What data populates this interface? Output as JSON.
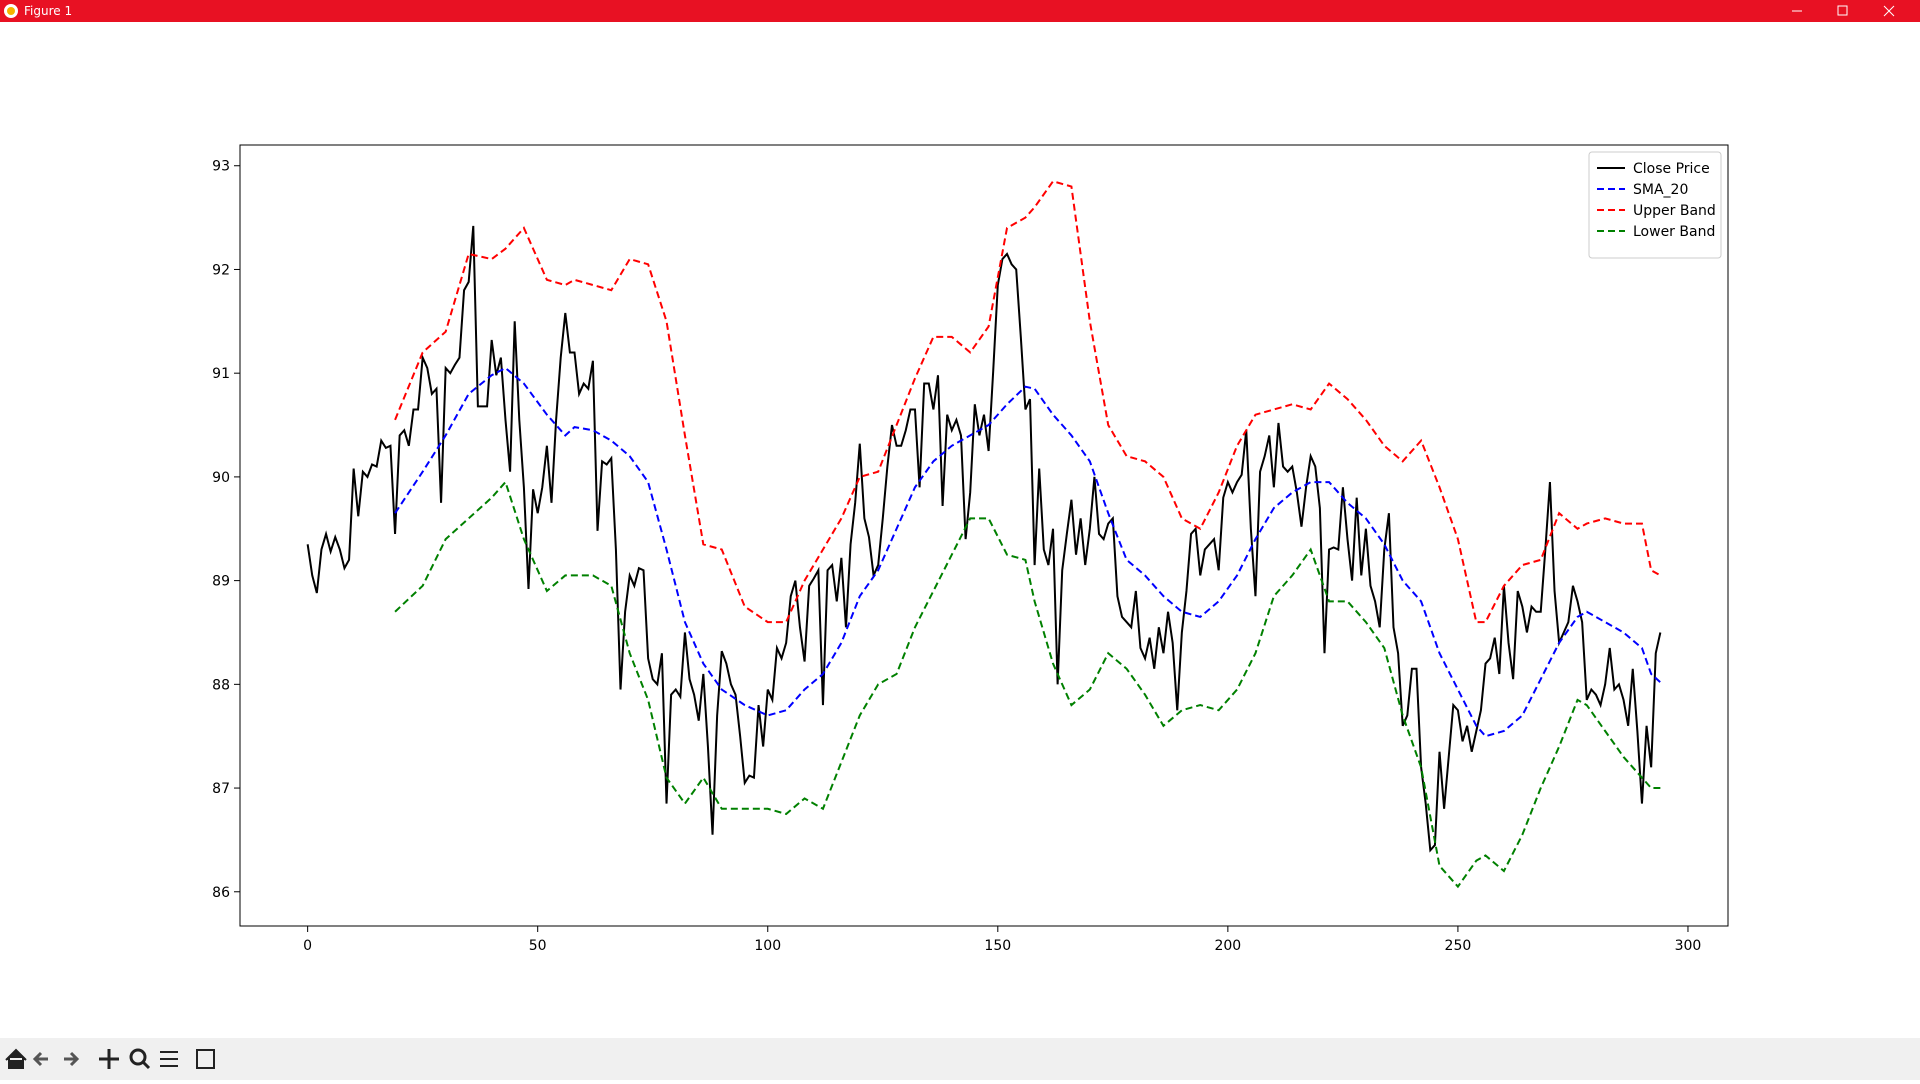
{
  "window": {
    "title": "Figure 1"
  },
  "chart_data": {
    "type": "line",
    "xlim": [
      -14.7,
      308.7
    ],
    "ylim": [
      85.67,
      93.2
    ],
    "xticks": [
      0,
      50,
      100,
      150,
      200,
      250,
      300
    ],
    "yticks": [
      86,
      87,
      88,
      89,
      90,
      91,
      92,
      93
    ],
    "legend": "upper right",
    "series": [
      {
        "name": "Close Price",
        "color": "#000000",
        "linestyle": "solid",
        "x": [
          0,
          1,
          2,
          3,
          4,
          5,
          6,
          7,
          8,
          9,
          10,
          11,
          12,
          13,
          14,
          15,
          16,
          17,
          18,
          19,
          20,
          21,
          22,
          23,
          24,
          25,
          26,
          27,
          28,
          29,
          30,
          31,
          32,
          33,
          34,
          35,
          36,
          37,
          38,
          39,
          40,
          41,
          42,
          43,
          44,
          45,
          46,
          47,
          48,
          49,
          50,
          51,
          52,
          53,
          54,
          55,
          56,
          57,
          58,
          59,
          60,
          61,
          62,
          63,
          64,
          65,
          66,
          67,
          68,
          69,
          70,
          71,
          72,
          73,
          74,
          75,
          76,
          77,
          78,
          79,
          80,
          81,
          82,
          83,
          84,
          85,
          86,
          87,
          88,
          89,
          90,
          91,
          92,
          93,
          94,
          95,
          96,
          97,
          98,
          99,
          100,
          101,
          102,
          103,
          104,
          105,
          106,
          107,
          108,
          109,
          110,
          111,
          112,
          113,
          114,
          115,
          116,
          117,
          118,
          119,
          120,
          121,
          122,
          123,
          124,
          125,
          126,
          127,
          128,
          129,
          130,
          131,
          132,
          133,
          134,
          135,
          136,
          137,
          138,
          139,
          140,
          141,
          142,
          143,
          144,
          145,
          146,
          147,
          148,
          149,
          150,
          151,
          152,
          153,
          154,
          155,
          156,
          157,
          158,
          159,
          160,
          161,
          162,
          163,
          164,
          165,
          166,
          167,
          168,
          169,
          170,
          171,
          172,
          173,
          174,
          175,
          176,
          177,
          178,
          179,
          180,
          181,
          182,
          183,
          184,
          185,
          186,
          187,
          188,
          189,
          190,
          191,
          192,
          193,
          194,
          195,
          196,
          197,
          198,
          199,
          200,
          201,
          202,
          203,
          204,
          205,
          206,
          207,
          208,
          209,
          210,
          211,
          212,
          213,
          214,
          215,
          216,
          217,
          218,
          219,
          220,
          221,
          222,
          223,
          224,
          225,
          226,
          227,
          228,
          229,
          230,
          231,
          232,
          233,
          234,
          235,
          236,
          237,
          238,
          239,
          240,
          241,
          242,
          243,
          244,
          245,
          246,
          247,
          248,
          249,
          250,
          251,
          252,
          253,
          254,
          255,
          256,
          257,
          258,
          259,
          260,
          261,
          262,
          263,
          264,
          265,
          266,
          267,
          268,
          269,
          270,
          271,
          272,
          273,
          274,
          275,
          276,
          277,
          278,
          279,
          280,
          281,
          282,
          283,
          284,
          285,
          286,
          287,
          288,
          289,
          290,
          291,
          292,
          293,
          294
        ],
        "values": [
          89.35,
          89.05,
          88.88,
          89.3,
          89.45,
          89.28,
          89.42,
          89.3,
          89.12,
          89.2,
          90.08,
          89.62,
          90.05,
          90.0,
          90.12,
          90.1,
          90.35,
          90.28,
          90.3,
          89.45,
          90.4,
          90.45,
          90.3,
          90.65,
          90.65,
          91.15,
          91.05,
          90.8,
          90.85,
          89.75,
          91.05,
          91.0,
          91.08,
          91.15,
          91.8,
          91.88,
          92.42,
          90.68,
          90.68,
          90.68,
          91.32,
          90.98,
          91.15,
          90.55,
          90.05,
          91.5,
          90.55,
          89.9,
          88.92,
          89.88,
          89.65,
          89.9,
          90.3,
          89.75,
          90.55,
          91.15,
          91.58,
          91.2,
          91.2,
          90.8,
          90.9,
          90.85,
          91.12,
          89.48,
          90.15,
          90.12,
          90.18,
          89.3,
          87.95,
          88.7,
          89.05,
          88.95,
          89.12,
          89.1,
          88.25,
          88.05,
          88.0,
          88.3,
          86.85,
          87.9,
          87.95,
          87.88,
          88.5,
          88.05,
          87.9,
          87.65,
          88.1,
          87.4,
          86.55,
          87.7,
          88.32,
          88.2,
          88.0,
          87.9,
          87.5,
          87.05,
          87.12,
          87.1,
          87.8,
          87.4,
          87.95,
          87.85,
          88.35,
          88.25,
          88.4,
          88.85,
          89.0,
          88.55,
          88.22,
          88.95,
          89.02,
          89.1,
          87.8,
          89.1,
          89.15,
          88.8,
          89.22,
          88.55,
          89.35,
          89.75,
          90.32,
          89.6,
          89.42,
          89.05,
          89.15,
          89.6,
          90.1,
          90.5,
          90.3,
          90.3,
          90.45,
          90.65,
          90.65,
          89.9,
          90.9,
          90.9,
          90.65,
          90.98,
          89.72,
          90.6,
          90.45,
          90.55,
          90.4,
          89.4,
          89.85,
          90.7,
          90.4,
          90.6,
          90.25,
          91.02,
          91.85,
          92.1,
          92.15,
          92.05,
          92.0,
          91.35,
          90.65,
          90.75,
          89.15,
          90.08,
          89.3,
          89.15,
          89.5,
          88.0,
          89.1,
          89.45,
          89.78,
          89.25,
          89.6,
          89.15,
          89.5,
          90.0,
          89.45,
          89.4,
          89.55,
          89.6,
          88.85,
          88.65,
          88.6,
          88.55,
          88.9,
          88.35,
          88.25,
          88.45,
          88.15,
          88.55,
          88.3,
          88.7,
          88.4,
          87.75,
          88.5,
          88.9,
          89.45,
          89.5,
          89.05,
          89.3,
          89.35,
          89.4,
          89.1,
          89.8,
          89.95,
          89.85,
          89.95,
          90.02,
          90.45,
          89.5,
          88.85,
          90.05,
          90.2,
          90.4,
          89.9,
          90.52,
          90.1,
          90.05,
          90.1,
          89.85,
          89.52,
          89.9,
          90.2,
          90.1,
          89.7,
          88.3,
          89.3,
          89.32,
          89.3,
          89.9,
          89.4,
          89.0,
          89.8,
          89.05,
          89.5,
          88.95,
          88.8,
          88.55,
          89.3,
          89.65,
          88.55,
          88.3,
          87.6,
          87.7,
          88.15,
          88.15,
          87.2,
          86.85,
          86.4,
          86.45,
          87.35,
          86.8,
          87.3,
          87.8,
          87.75,
          87.45,
          87.6,
          87.35,
          87.55,
          87.75,
          88.2,
          88.25,
          88.45,
          88.1,
          88.95,
          88.4,
          88.05,
          88.9,
          88.75,
          88.5,
          88.75,
          88.7,
          88.7,
          89.3,
          89.95,
          88.9,
          88.4,
          88.5,
          88.6,
          88.95,
          88.8,
          88.6,
          87.85,
          87.95,
          87.9,
          87.8,
          88.0,
          88.35,
          87.95,
          88.0,
          87.85,
          87.6,
          88.15,
          87.55,
          86.85,
          87.6,
          87.2,
          88.3,
          88.5
        ]
      },
      {
        "name": "SMA_20",
        "color": "#0000ff",
        "linestyle": "dashed",
        "x": [
          19,
          25,
          30,
          35,
          40,
          43,
          47,
          52,
          56,
          58,
          62,
          66,
          70,
          74,
          78,
          82,
          86,
          90,
          95,
          100,
          104,
          108,
          112,
          116,
          120,
          124,
          128,
          132,
          136,
          140,
          144,
          148,
          152,
          156,
          158,
          162,
          166,
          170,
          174,
          178,
          182,
          186,
          190,
          194,
          198,
          202,
          206,
          210,
          214,
          218,
          222,
          226,
          230,
          234,
          238,
          242,
          246,
          250,
          254,
          256,
          260,
          264,
          268,
          272,
          276,
          278,
          282,
          286,
          290,
          292,
          294
        ],
        "values": [
          89.65,
          90.05,
          90.4,
          90.8,
          90.98,
          91.05,
          90.9,
          90.6,
          90.4,
          90.48,
          90.45,
          90.35,
          90.2,
          89.95,
          89.3,
          88.6,
          88.2,
          87.95,
          87.8,
          87.7,
          87.75,
          87.95,
          88.1,
          88.4,
          88.85,
          89.1,
          89.5,
          89.9,
          90.15,
          90.3,
          90.4,
          90.5,
          90.7,
          90.87,
          90.85,
          90.6,
          90.4,
          90.15,
          89.65,
          89.2,
          89.05,
          88.85,
          88.7,
          88.65,
          88.8,
          89.05,
          89.4,
          89.7,
          89.85,
          89.95,
          89.95,
          89.75,
          89.6,
          89.35,
          89.0,
          88.8,
          88.3,
          87.95,
          87.6,
          87.5,
          87.55,
          87.7,
          88.05,
          88.4,
          88.65,
          88.7,
          88.6,
          88.5,
          88.35,
          88.1,
          88.02
        ]
      },
      {
        "name": "Upper Band",
        "color": "#ff0000",
        "linestyle": "dashed",
        "x": [
          19,
          25,
          30,
          35,
          40,
          43,
          47,
          52,
          56,
          58,
          62,
          66,
          70,
          74,
          78,
          82,
          86,
          90,
          95,
          100,
          104,
          108,
          112,
          116,
          120,
          124,
          128,
          132,
          136,
          140,
          144,
          148,
          152,
          156,
          158,
          162,
          166,
          170,
          174,
          178,
          182,
          186,
          190,
          194,
          198,
          202,
          206,
          210,
          214,
          218,
          222,
          226,
          230,
          234,
          238,
          242,
          246,
          250,
          254,
          256,
          260,
          264,
          268,
          272,
          276,
          278,
          282,
          286,
          290,
          292,
          294
        ],
        "values": [
          90.55,
          91.2,
          91.4,
          92.15,
          92.1,
          92.2,
          92.4,
          91.9,
          91.85,
          91.9,
          91.85,
          91.8,
          92.1,
          92.05,
          91.5,
          90.4,
          89.35,
          89.3,
          88.75,
          88.6,
          88.6,
          89.0,
          89.3,
          89.6,
          90.0,
          90.05,
          90.5,
          90.95,
          91.35,
          91.35,
          91.2,
          91.45,
          92.4,
          92.5,
          92.6,
          92.85,
          92.8,
          91.5,
          90.5,
          90.2,
          90.15,
          90.0,
          89.6,
          89.5,
          89.85,
          90.3,
          90.6,
          90.65,
          90.7,
          90.65,
          90.9,
          90.75,
          90.55,
          90.3,
          90.15,
          90.35,
          89.9,
          89.4,
          88.6,
          88.6,
          88.95,
          89.15,
          89.2,
          89.65,
          89.5,
          89.55,
          89.6,
          89.55,
          89.55,
          89.1,
          89.05
        ]
      },
      {
        "name": "Lower Band",
        "color": "#008000",
        "linestyle": "dashed",
        "x": [
          19,
          25,
          30,
          35,
          40,
          43,
          47,
          52,
          56,
          58,
          62,
          66,
          70,
          74,
          78,
          82,
          86,
          90,
          95,
          100,
          104,
          108,
          112,
          116,
          120,
          124,
          128,
          132,
          136,
          140,
          144,
          148,
          152,
          156,
          158,
          162,
          166,
          170,
          174,
          178,
          182,
          186,
          190,
          194,
          198,
          202,
          206,
          210,
          214,
          218,
          222,
          226,
          230,
          234,
          238,
          242,
          246,
          250,
          254,
          256,
          260,
          264,
          268,
          272,
          276,
          278,
          282,
          286,
          290,
          292,
          294
        ],
        "values": [
          88.7,
          88.95,
          89.4,
          89.6,
          89.8,
          89.95,
          89.4,
          88.9,
          89.05,
          89.05,
          89.05,
          88.95,
          88.3,
          87.85,
          87.1,
          86.85,
          87.1,
          86.8,
          86.8,
          86.8,
          86.75,
          86.9,
          86.8,
          87.25,
          87.7,
          88.0,
          88.1,
          88.55,
          88.9,
          89.25,
          89.6,
          89.6,
          89.25,
          89.2,
          88.8,
          88.2,
          87.8,
          87.95,
          88.3,
          88.15,
          87.9,
          87.6,
          87.75,
          87.8,
          87.75,
          87.95,
          88.3,
          88.85,
          89.05,
          89.3,
          88.8,
          88.8,
          88.6,
          88.35,
          87.7,
          87.2,
          86.25,
          86.05,
          86.3,
          86.35,
          86.2,
          86.55,
          87.0,
          87.4,
          87.85,
          87.8,
          87.55,
          87.3,
          87.1,
          87.0,
          87.0
        ]
      }
    ]
  }
}
